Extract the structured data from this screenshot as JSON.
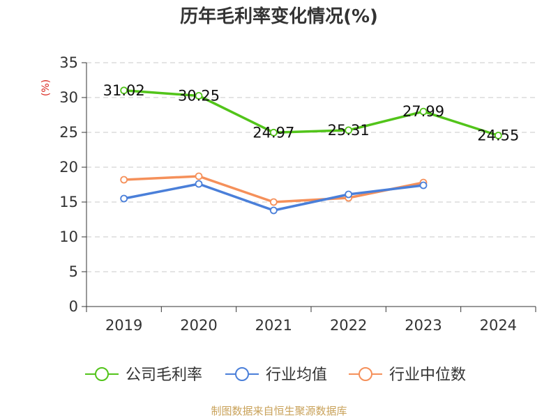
{
  "chart_data": {
    "type": "line",
    "title": "历年毛利率变化情况(%)",
    "unit_label": "(%)",
    "categories": [
      "2019",
      "2020",
      "2021",
      "2022",
      "2023",
      "2024"
    ],
    "y_ticks": [
      "0",
      "5",
      "10",
      "15",
      "20",
      "25",
      "30",
      "35"
    ],
    "ylim": [
      0,
      35
    ],
    "grid": true,
    "legend_position": "bottom",
    "series": [
      {
        "name": "公司毛利率",
        "color": "#52c41a",
        "values": [
          31.02,
          30.25,
          24.97,
          25.31,
          27.99,
          24.55
        ],
        "labels": [
          "31.02",
          "30.25",
          "24.97",
          "25.31",
          "27.99",
          "24.55"
        ]
      },
      {
        "name": "行业均值",
        "color": "#4a7fd9",
        "values": [
          15.5,
          17.6,
          13.8,
          16.1,
          17.4,
          null
        ]
      },
      {
        "name": "行业中位数",
        "color": "#f5905a",
        "values": [
          18.2,
          18.7,
          15.0,
          15.6,
          17.8,
          null
        ]
      }
    ]
  },
  "colors": {
    "title": "#333333",
    "unit_label": "#d9251c",
    "source": "#c9a25a",
    "axis": "#333333",
    "grid": "#c8c8c8"
  },
  "source": "制图数据来自恒生聚源数据库"
}
